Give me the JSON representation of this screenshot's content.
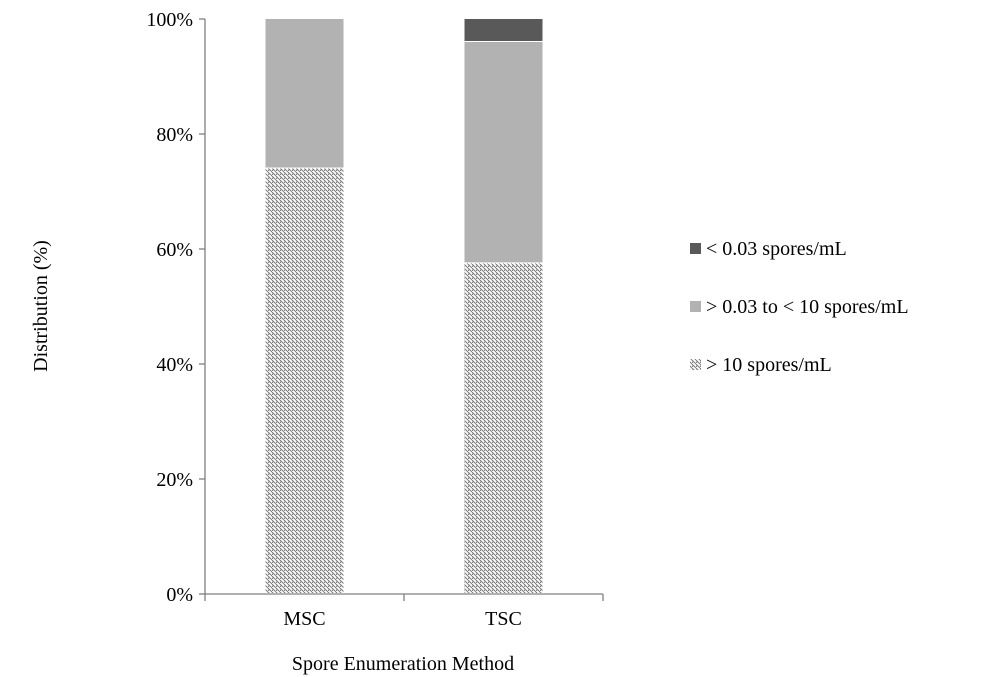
{
  "chart_data": {
    "type": "bar",
    "stacked": true,
    "xlabel": "Spore Enumeration Method",
    "ylabel": "Distribution (%)",
    "ylim": [
      0,
      100
    ],
    "yticks": [
      0,
      20,
      40,
      60,
      80,
      100
    ],
    "ytick_labels": [
      "0%",
      "20%",
      "40%",
      "60%",
      "80%",
      "100%"
    ],
    "categories": [
      "MSC",
      "TSC"
    ],
    "series": [
      {
        "name": "> 10 spores/mL",
        "values": [
          74,
          57.5
        ],
        "color": "#d9d9d9",
        "pattern": "diagonal-hatch"
      },
      {
        "name": "> 0.03 to < 10 spores/mL",
        "values": [
          26,
          38.5
        ],
        "color": "#b2b2b2"
      },
      {
        "name": "< 0.03 spores/mL",
        "values": [
          0,
          4
        ],
        "color": "#595959"
      }
    ],
    "legend": {
      "position": "right",
      "order": [
        "< 0.03 spores/mL",
        "> 0.03 to < 10 spores/mL",
        "> 10 spores/mL"
      ]
    },
    "grid": false
  }
}
